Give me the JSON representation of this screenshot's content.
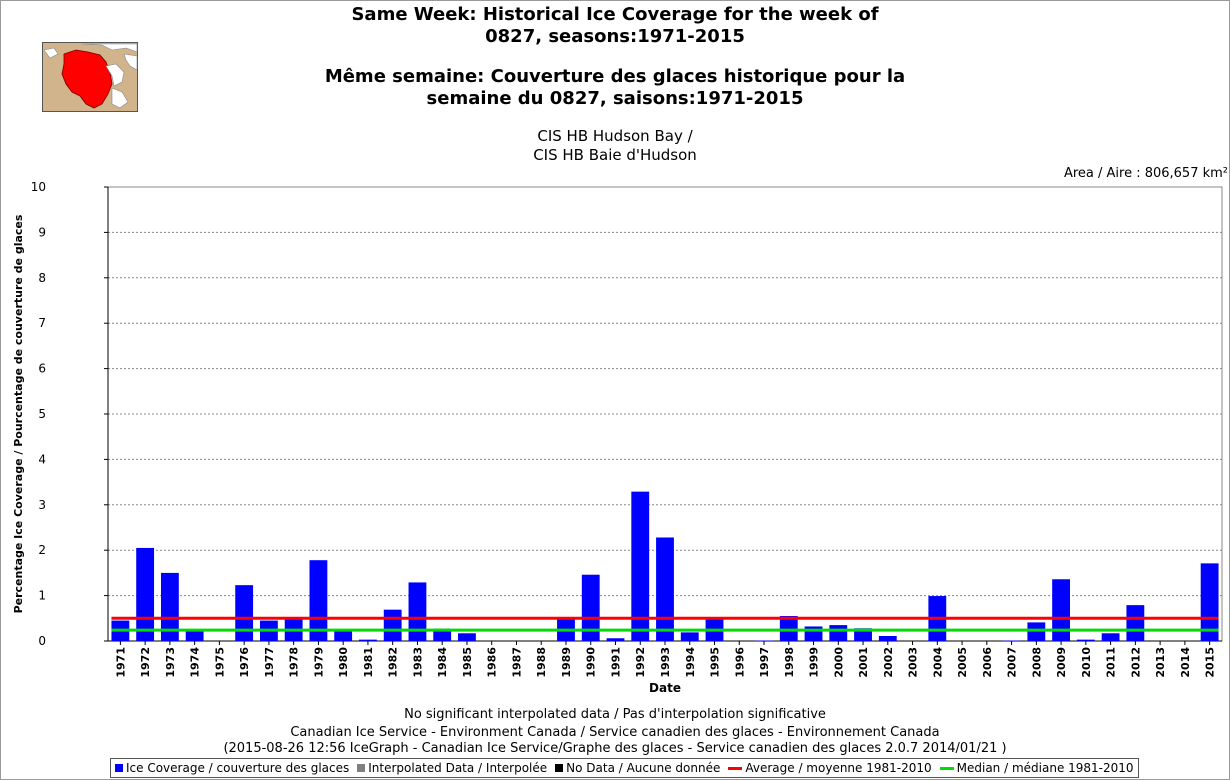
{
  "header": {
    "title_en": "Same Week: Historical Ice Coverage for the week of\n0827, seasons:1971-2015",
    "title_fr": "Même semaine: Couverture des glaces historique pour la\nsemaine du 0827, saisons:1971-2015",
    "region": "CIS HB Hudson Bay /\nCIS HB Baie d'Hudson",
    "area": "Area / Aire : 806,657 km²"
  },
  "footer": {
    "line1": "No significant interpolated data / Pas d'interpolation significative",
    "line2": "Canadian Ice Service - Environment Canada / Service canadien des glaces - Environnement Canada",
    "line3": "(2015-08-26 12:56 IceGraph - Canadian Ice Service/Graphe des glaces - Service canadien des glaces 2.0.7 2014/01/21 )"
  },
  "legend": {
    "coverage": "Ice Coverage / couverture des glaces",
    "interpolated": "Interpolated Data / Interpolée",
    "nodata": "No Data / Aucune donnée",
    "average": "Average / moyenne 1981-2010",
    "median": "Median / médiane 1981-2010"
  },
  "colors": {
    "bar": "#0000ff",
    "average": "#ff0000",
    "median": "#00dd00",
    "interpolated": "#808080",
    "nodata": "#000000",
    "grid": "#888888"
  },
  "chart_data": {
    "type": "bar",
    "xlabel": "Date",
    "ylabel": "Percentage Ice Coverage / Pourcentage de couverture de glaces",
    "ylim": [
      0,
      10
    ],
    "yticks": [
      0,
      1,
      2,
      3,
      4,
      5,
      6,
      7,
      8,
      9,
      10
    ],
    "grid": true,
    "categories": [
      "1971",
      "1972",
      "1973",
      "1974",
      "1975",
      "1976",
      "1977",
      "1978",
      "1979",
      "1980",
      "1981",
      "1982",
      "1983",
      "1984",
      "1985",
      "1986",
      "1987",
      "1988",
      "1989",
      "1990",
      "1991",
      "1992",
      "1993",
      "1994",
      "1995",
      "1996",
      "1997",
      "1998",
      "1999",
      "2000",
      "2001",
      "2002",
      "2003",
      "2004",
      "2005",
      "2006",
      "2007",
      "2008",
      "2009",
      "2010",
      "2011",
      "2012",
      "2013",
      "2014",
      "2015"
    ],
    "series": [
      {
        "name": "Ice Coverage / couverture des glaces",
        "values": [
          0.45,
          2.05,
          1.5,
          0.22,
          0,
          1.23,
          0.45,
          0.5,
          1.78,
          0.22,
          0.03,
          0.69,
          1.29,
          0.27,
          0.17,
          0,
          0,
          0,
          0.5,
          1.46,
          0.06,
          3.29,
          2.28,
          0.19,
          0.5,
          0,
          0.01,
          0.55,
          0.32,
          0.35,
          0.28,
          0.11,
          0,
          0.99,
          0,
          0,
          0.01,
          0.41,
          1.36,
          0.03,
          0.17,
          0.79,
          0,
          0,
          1.71
        ]
      }
    ],
    "average": 0.5,
    "median": 0.24,
    "legend_position": "bottom"
  }
}
